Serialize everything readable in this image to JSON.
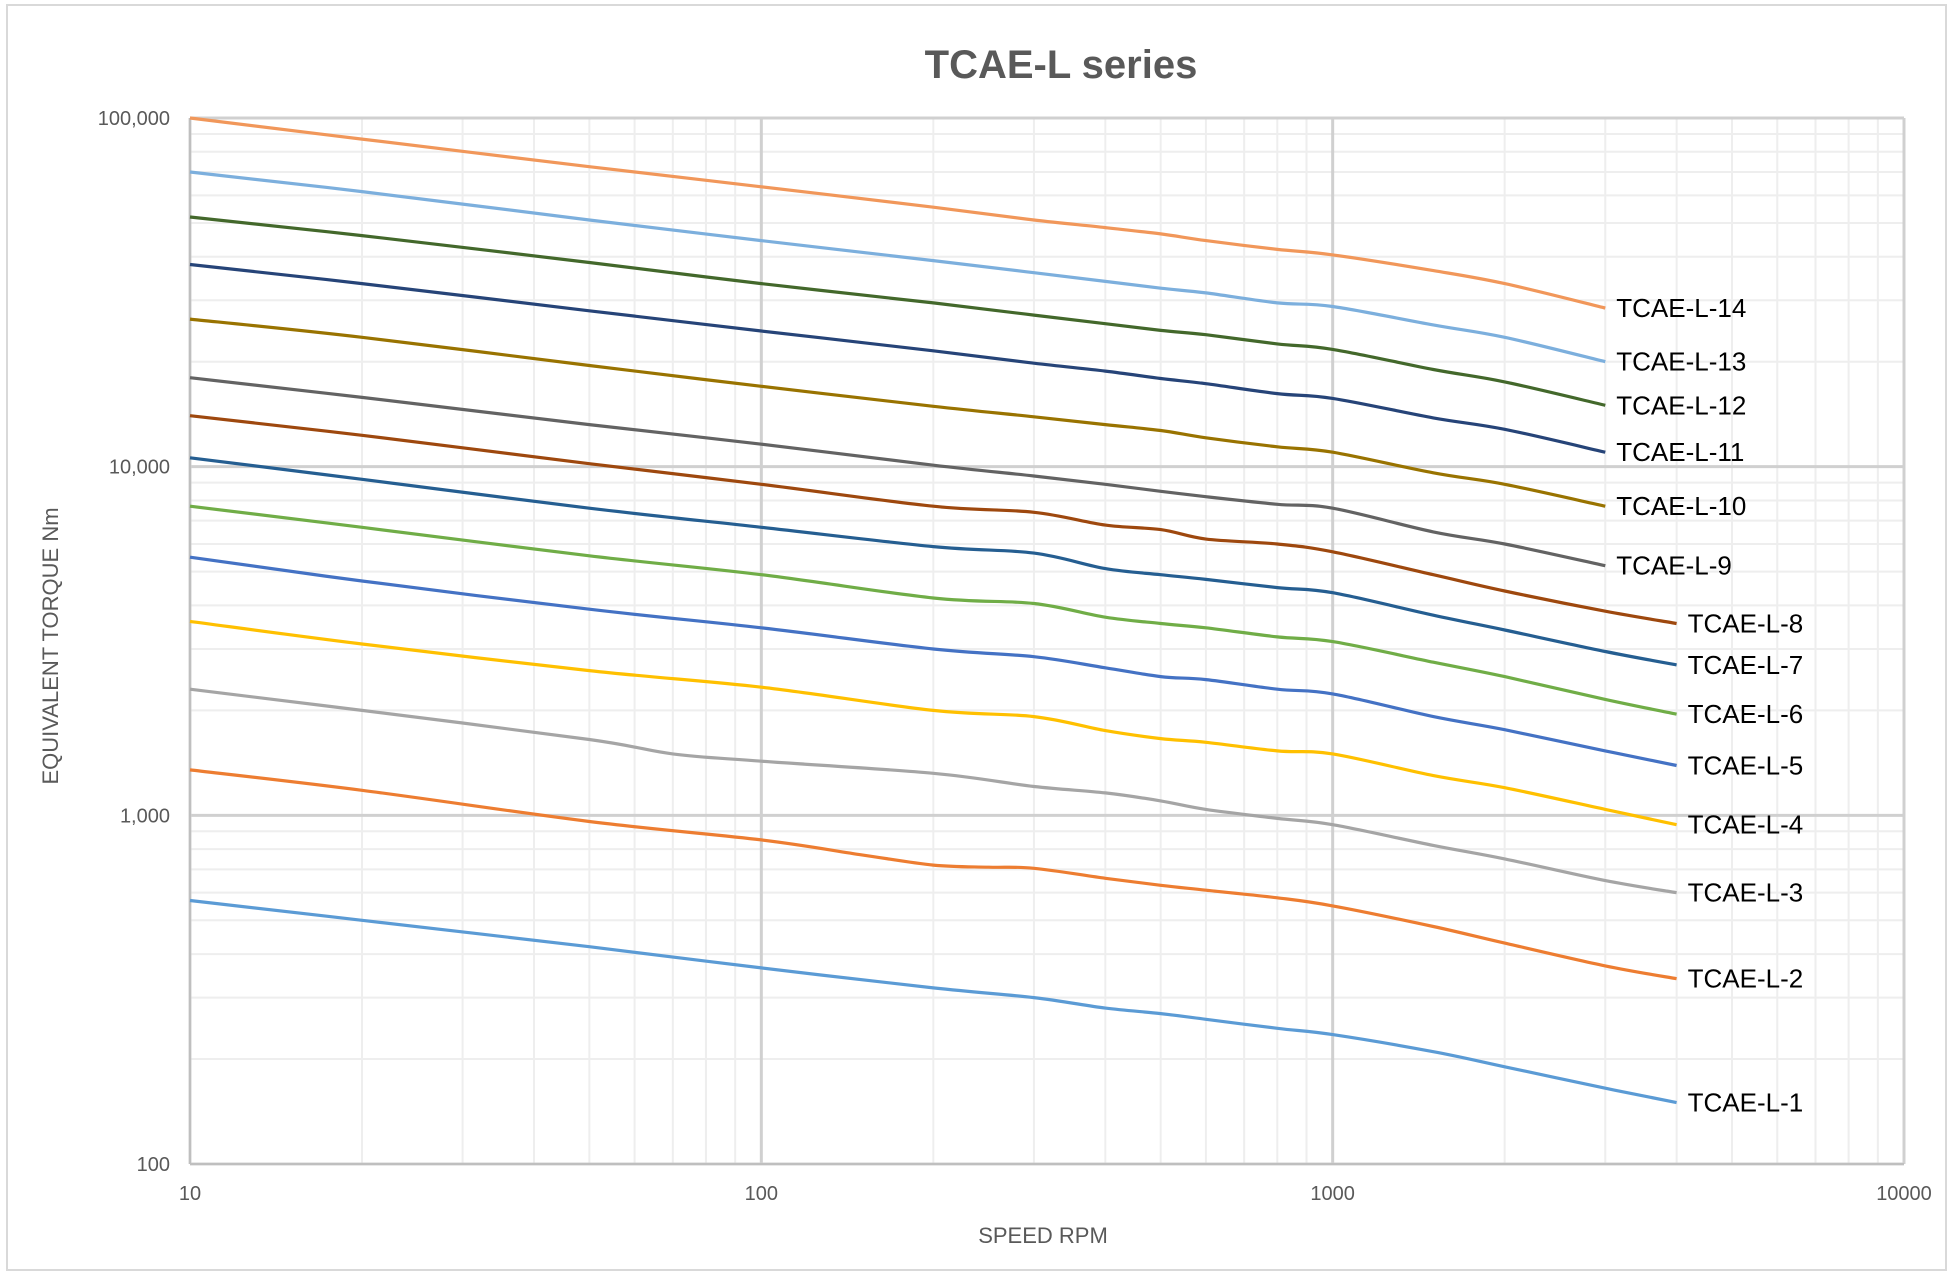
{
  "chart_data": {
    "type": "line",
    "title": "TCAE-L series",
    "xlabel": "SPEED  RPM",
    "ylabel": "EQUIVALENT TORQUE Nm",
    "xscale": "log",
    "yscale": "log",
    "xlim": [
      10,
      10000
    ],
    "ylim": [
      100,
      100000
    ],
    "x_tick_labels": [
      {
        "value": 10,
        "label": "10"
      },
      {
        "value": 100,
        "label": "100"
      },
      {
        "value": 1000,
        "label": "1000"
      },
      {
        "value": 10000,
        "label": "10000"
      }
    ],
    "y_tick_labels": [
      {
        "value": 100,
        "label": "100"
      },
      {
        "value": 1000,
        "label": "1,000"
      },
      {
        "value": 10000,
        "label": "10,000"
      },
      {
        "value": 100000,
        "label": "100,000"
      }
    ],
    "grid": true,
    "minor_grid": true,
    "legend": "inline labels at right end of each line",
    "series": [
      {
        "name": "TCAE-L-1",
        "color": "#5b9bd5",
        "x": [
          10,
          20,
          50,
          100,
          200,
          300,
          400,
          500,
          600,
          800,
          1000,
          1500,
          2000,
          3000,
          4000
        ],
        "y": [
          570,
          500,
          420,
          365,
          320,
          300,
          280,
          270,
          260,
          245,
          235,
          210,
          190,
          165,
          150
        ]
      },
      {
        "name": "TCAE-L-2",
        "color": "#ed7d31",
        "x": [
          10,
          20,
          50,
          100,
          150,
          200,
          250,
          300,
          400,
          500,
          600,
          800,
          1000,
          1500,
          2000,
          3000,
          4000
        ],
        "y": [
          1350,
          1180,
          960,
          850,
          770,
          720,
          710,
          705,
          660,
          630,
          610,
          580,
          550,
          480,
          430,
          370,
          340
        ]
      },
      {
        "name": "TCAE-L-3",
        "color": "#a5a5a5",
        "x": [
          10,
          20,
          50,
          70,
          100,
          200,
          300,
          400,
          500,
          600,
          800,
          1000,
          1500,
          2000,
          3000,
          4000
        ],
        "y": [
          2300,
          2000,
          1650,
          1500,
          1430,
          1320,
          1210,
          1160,
          1100,
          1040,
          980,
          940,
          820,
          750,
          650,
          600
        ]
      },
      {
        "name": "TCAE-L-4",
        "color": "#ffc000",
        "x": [
          10,
          20,
          50,
          100,
          200,
          300,
          400,
          500,
          600,
          800,
          1000,
          1500,
          2000,
          3000,
          4000
        ],
        "y": [
          3600,
          3100,
          2600,
          2330,
          2000,
          1920,
          1750,
          1660,
          1620,
          1530,
          1500,
          1300,
          1200,
          1040,
          940
        ]
      },
      {
        "name": "TCAE-L-5",
        "color": "#4472c4",
        "x": [
          10,
          20,
          50,
          100,
          200,
          300,
          400,
          500,
          600,
          800,
          1000,
          1500,
          2000,
          3000,
          4000
        ],
        "y": [
          5500,
          4700,
          3900,
          3450,
          3000,
          2850,
          2650,
          2500,
          2450,
          2300,
          2230,
          1920,
          1760,
          1530,
          1390
        ]
      },
      {
        "name": "TCAE-L-6",
        "color": "#70ad47",
        "x": [
          10,
          20,
          50,
          100,
          200,
          300,
          400,
          500,
          600,
          800,
          1000,
          1500,
          2000,
          3000,
          4000
        ],
        "y": [
          7700,
          6700,
          5550,
          4900,
          4200,
          4050,
          3700,
          3550,
          3450,
          3250,
          3150,
          2750,
          2500,
          2150,
          1950
        ]
      },
      {
        "name": "TCAE-L-7",
        "color": "#255e91",
        "x": [
          10,
          20,
          50,
          100,
          200,
          300,
          400,
          500,
          600,
          800,
          1000,
          1500,
          2000,
          3000,
          4000
        ],
        "y": [
          10600,
          9200,
          7600,
          6700,
          5900,
          5650,
          5100,
          4900,
          4750,
          4500,
          4350,
          3750,
          3400,
          2950,
          2700
        ]
      },
      {
        "name": "TCAE-L-8",
        "color": "#9e480e",
        "x": [
          10,
          20,
          50,
          100,
          200,
          300,
          400,
          500,
          600,
          800,
          1000,
          1500,
          2000,
          3000,
          4000
        ],
        "y": [
          14000,
          12300,
          10200,
          8900,
          7700,
          7400,
          6800,
          6600,
          6200,
          6000,
          5700,
          4900,
          4400,
          3850,
          3550
        ]
      },
      {
        "name": "TCAE-L-9",
        "color": "#636363",
        "x": [
          10,
          20,
          50,
          100,
          200,
          300,
          400,
          500,
          600,
          800,
          1000,
          1500,
          2000,
          3000
        ],
        "y": [
          18000,
          15800,
          13200,
          11600,
          10100,
          9400,
          8900,
          8500,
          8200,
          7800,
          7600,
          6500,
          6000,
          5200
        ]
      },
      {
        "name": "TCAE-L-10",
        "color": "#997300",
        "x": [
          10,
          20,
          50,
          100,
          200,
          300,
          400,
          500,
          600,
          800,
          1000,
          1500,
          2000,
          3000
        ],
        "y": [
          26500,
          23500,
          19500,
          17000,
          14900,
          13900,
          13200,
          12700,
          12100,
          11400,
          11000,
          9600,
          8900,
          7700
        ]
      },
      {
        "name": "TCAE-L-11",
        "color": "#264478",
        "x": [
          10,
          20,
          50,
          100,
          200,
          300,
          400,
          500,
          600,
          800,
          1000,
          1500,
          2000,
          3000
        ],
        "y": [
          38000,
          33500,
          28000,
          24500,
          21500,
          19800,
          18800,
          17900,
          17300,
          16200,
          15700,
          13800,
          12800,
          11000
        ]
      },
      {
        "name": "TCAE-L-12",
        "color": "#43682b",
        "x": [
          10,
          20,
          50,
          100,
          200,
          300,
          400,
          500,
          600,
          800,
          1000,
          1500,
          2000,
          3000
        ],
        "y": [
          52000,
          46000,
          38500,
          33500,
          29500,
          27200,
          25700,
          24600,
          23900,
          22500,
          21700,
          19000,
          17500,
          15000
        ]
      },
      {
        "name": "TCAE-L-13",
        "color": "#7cafdd",
        "x": [
          10,
          20,
          50,
          100,
          200,
          300,
          400,
          500,
          600,
          800,
          1000,
          1500,
          2000,
          3000
        ],
        "y": [
          70000,
          61500,
          51000,
          44500,
          39000,
          36000,
          34000,
          32500,
          31500,
          29500,
          28800,
          25500,
          23500,
          20000
        ]
      },
      {
        "name": "TCAE-L-14",
        "color": "#f1975a",
        "x": [
          10,
          20,
          50,
          100,
          200,
          300,
          400,
          500,
          600,
          800,
          1000,
          1500,
          2000,
          3000
        ],
        "y": [
          100000,
          87000,
          72500,
          63500,
          55500,
          51000,
          48500,
          46500,
          44500,
          42000,
          40500,
          36500,
          33500,
          28500
        ]
      }
    ]
  }
}
